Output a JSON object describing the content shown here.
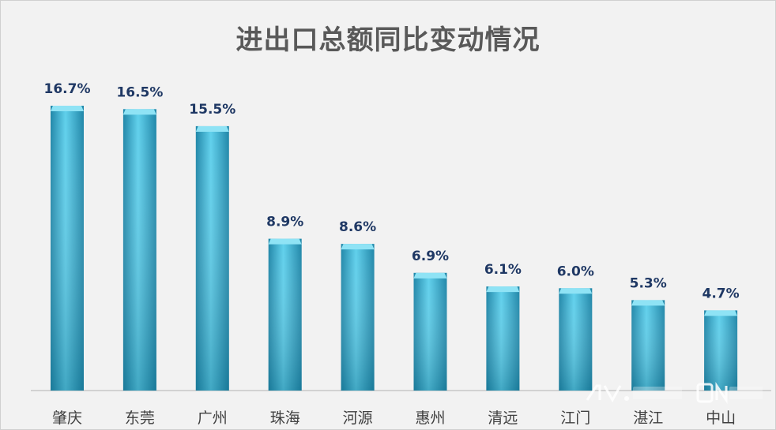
{
  "chart_data": {
    "type": "bar",
    "title": "进出口总额同比变动情况",
    "xlabel": "",
    "ylabel": "",
    "categories": [
      "肇庆",
      "东莞",
      "广州",
      "珠海",
      "河源",
      "惠州",
      "清远",
      "江门",
      "湛江",
      "中山"
    ],
    "values": [
      16.7,
      16.5,
      15.5,
      8.9,
      8.6,
      6.9,
      6.1,
      6.0,
      5.3,
      4.7
    ],
    "value_labels": [
      "16.7%",
      "16.5%",
      "15.5%",
      "8.9%",
      "8.6%",
      "6.9%",
      "6.1%",
      "6.0%",
      "5.3%",
      "4.7%"
    ],
    "ylim": [
      0,
      16.7
    ],
    "grid": false,
    "legend": "none",
    "colors": {
      "bar_top": "#5fd0ec",
      "bar_mid": "#35b3d8",
      "bar_bottom": "#1f86a8",
      "bar_cap": "#8fe3f5",
      "value_label": "#1f3864",
      "category_label": "#404040",
      "title": "#595959",
      "background": "#f2f2f2",
      "axis": "#bfbfbf"
    }
  }
}
